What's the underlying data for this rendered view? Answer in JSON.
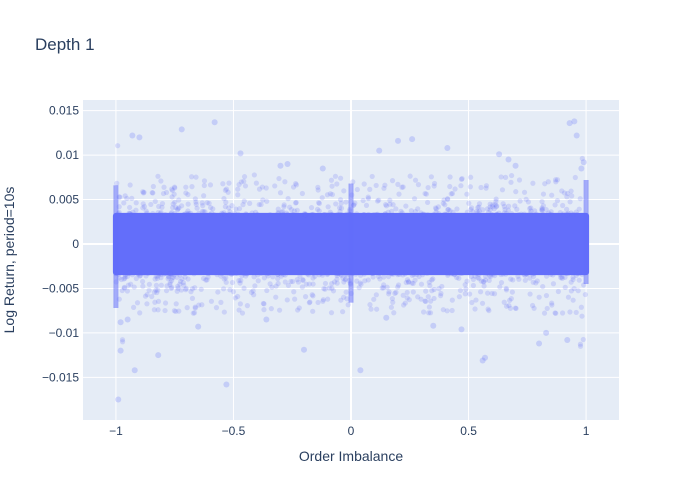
{
  "chart_data": {
    "type": "scatter",
    "title": "Depth 1",
    "xlabel": "Order Imbalance",
    "ylabel": "Log Return, period=10s",
    "xlim": [
      -1.14,
      1.14
    ],
    "ylim": [
      -0.0198,
      0.0162
    ],
    "x_ticks": [
      {
        "value": -1,
        "label": "−1"
      },
      {
        "value": -0.5,
        "label": "−0.5"
      },
      {
        "value": 0,
        "label": "0"
      },
      {
        "value": 0.5,
        "label": "0.5"
      },
      {
        "value": 1,
        "label": "1"
      }
    ],
    "y_ticks": [
      {
        "value": 0.015,
        "label": "0.015"
      },
      {
        "value": 0.01,
        "label": "0.01"
      },
      {
        "value": 0.005,
        "label": "0.005"
      },
      {
        "value": 0,
        "label": "0"
      },
      {
        "value": -0.005,
        "label": "−0.005"
      },
      {
        "value": -0.01,
        "label": "−0.01"
      },
      {
        "value": -0.015,
        "label": "−0.015"
      }
    ],
    "grid": true,
    "legend": "none",
    "colors": {
      "marker": "#636efa",
      "plot_bg": "#e5ecf6",
      "grid": "#ffffff",
      "text": "#2a3f5f"
    },
    "marker_opacity": 0.2,
    "dense_band": {
      "x_range": [
        -1,
        1
      ],
      "y_range": [
        -0.0035,
        0.0035
      ],
      "description_free": true
    },
    "outlier_points": [
      {
        "x": -0.99,
        "y": -0.0175
      },
      {
        "x": -0.98,
        "y": -0.012
      },
      {
        "x": -0.93,
        "y": 0.0122
      },
      {
        "x": -0.9,
        "y": 0.012
      },
      {
        "x": -0.92,
        "y": -0.0142
      },
      {
        "x": -0.82,
        "y": -0.0125
      },
      {
        "x": -0.72,
        "y": 0.0129
      },
      {
        "x": -0.58,
        "y": 0.0137
      },
      {
        "x": -0.53,
        "y": -0.0158
      },
      {
        "x": -0.47,
        "y": 0.0102
      },
      {
        "x": -0.3,
        "y": 0.0088
      },
      {
        "x": -0.27,
        "y": 0.009
      },
      {
        "x": -0.2,
        "y": -0.0119
      },
      {
        "x": 0.04,
        "y": -0.0142
      },
      {
        "x": 0.12,
        "y": 0.0105
      },
      {
        "x": 0.2,
        "y": 0.0116
      },
      {
        "x": 0.26,
        "y": 0.0118
      },
      {
        "x": 0.41,
        "y": 0.0108
      },
      {
        "x": 0.56,
        "y": -0.0131
      },
      {
        "x": 0.57,
        "y": -0.0128
      },
      {
        "x": 0.63,
        "y": 0.0101
      },
      {
        "x": 0.67,
        "y": 0.0095
      },
      {
        "x": 0.7,
        "y": 0.0088
      },
      {
        "x": 0.8,
        "y": -0.0112
      },
      {
        "x": 0.83,
        "y": -0.01
      },
      {
        "x": 0.92,
        "y": -0.0108
      },
      {
        "x": 0.93,
        "y": 0.0136
      },
      {
        "x": 0.95,
        "y": 0.0138
      },
      {
        "x": 0.96,
        "y": 0.0122
      },
      {
        "x": -0.95,
        "y": -0.0085
      },
      {
        "x": -0.98,
        "y": -0.0088
      },
      {
        "x": 0.99,
        "y": 0.0092
      },
      {
        "x": 0.98,
        "y": 0.0085
      },
      {
        "x": -0.65,
        "y": -0.0093
      },
      {
        "x": 0.35,
        "y": -0.0092
      },
      {
        "x": -0.36,
        "y": -0.0085
      },
      {
        "x": 0.47,
        "y": -0.0096
      },
      {
        "x": -0.12,
        "y": 0.0085
      },
      {
        "x": 0.15,
        "y": -0.0083
      }
    ]
  }
}
